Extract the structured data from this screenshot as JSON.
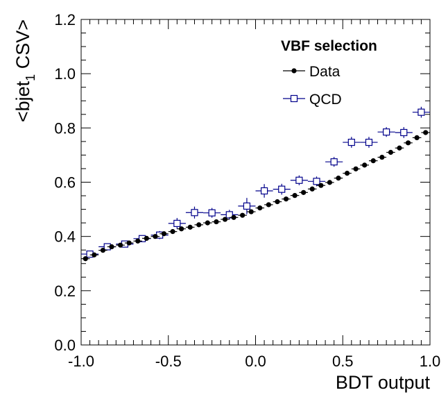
{
  "chart_data": {
    "type": "scatter",
    "xlabel": "BDT output",
    "ylabel_main": "<bjet",
    "ylabel_sub": "1",
    "ylabel_tail": " CSV>",
    "xlim": [
      -1.0,
      1.0
    ],
    "ylim": [
      0.0,
      1.2
    ],
    "x_ticks": [
      "-1.0",
      "-0.5",
      "0.0",
      "0.5",
      "1.0"
    ],
    "y_ticks": [
      "0.0",
      "0.2",
      "0.4",
      "0.6",
      "0.8",
      "1.0",
      "1.2"
    ],
    "legend_title": "VBF selection",
    "legend_placement": "top-right",
    "grid": false,
    "series": [
      {
        "name": "Data",
        "marker": "filled-circle",
        "color": "#000000",
        "x": [
          -0.975,
          -0.925,
          -0.875,
          -0.825,
          -0.775,
          -0.725,
          -0.675,
          -0.625,
          -0.575,
          -0.525,
          -0.475,
          -0.425,
          -0.375,
          -0.325,
          -0.275,
          -0.225,
          -0.175,
          -0.125,
          -0.075,
          -0.025,
          0.025,
          0.075,
          0.125,
          0.175,
          0.225,
          0.275,
          0.325,
          0.375,
          0.425,
          0.475,
          0.525,
          0.575,
          0.625,
          0.675,
          0.725,
          0.775,
          0.825,
          0.875,
          0.925,
          0.975
        ],
        "y": [
          0.318,
          0.332,
          0.349,
          0.362,
          0.368,
          0.376,
          0.383,
          0.393,
          0.4,
          0.41,
          0.418,
          0.428,
          0.434,
          0.443,
          0.45,
          0.454,
          0.463,
          0.47,
          0.478,
          0.491,
          0.505,
          0.517,
          0.528,
          0.538,
          0.551,
          0.562,
          0.575,
          0.588,
          0.599,
          0.615,
          0.633,
          0.649,
          0.663,
          0.679,
          0.692,
          0.71,
          0.726,
          0.745,
          0.764,
          0.783
        ]
      },
      {
        "name": "QCD",
        "marker": "open-square",
        "color": "#00008b",
        "x": [
          -0.95,
          -0.85,
          -0.75,
          -0.65,
          -0.55,
          -0.45,
          -0.35,
          -0.25,
          -0.15,
          -0.05,
          0.05,
          0.15,
          0.25,
          0.35,
          0.45,
          0.55,
          0.65,
          0.75,
          0.85,
          0.95
        ],
        "y": [
          0.335,
          0.362,
          0.372,
          0.392,
          0.405,
          0.448,
          0.488,
          0.487,
          0.48,
          0.512,
          0.568,
          0.574,
          0.607,
          0.603,
          0.675,
          0.747,
          0.747,
          0.785,
          0.783,
          0.858
        ],
        "yerr": [
          0.012,
          0.012,
          0.012,
          0.012,
          0.015,
          0.02,
          0.022,
          0.018,
          0.018,
          0.03,
          0.025,
          0.02,
          0.018,
          0.018,
          0.018,
          0.02,
          0.02,
          0.018,
          0.02,
          0.02
        ]
      }
    ]
  }
}
